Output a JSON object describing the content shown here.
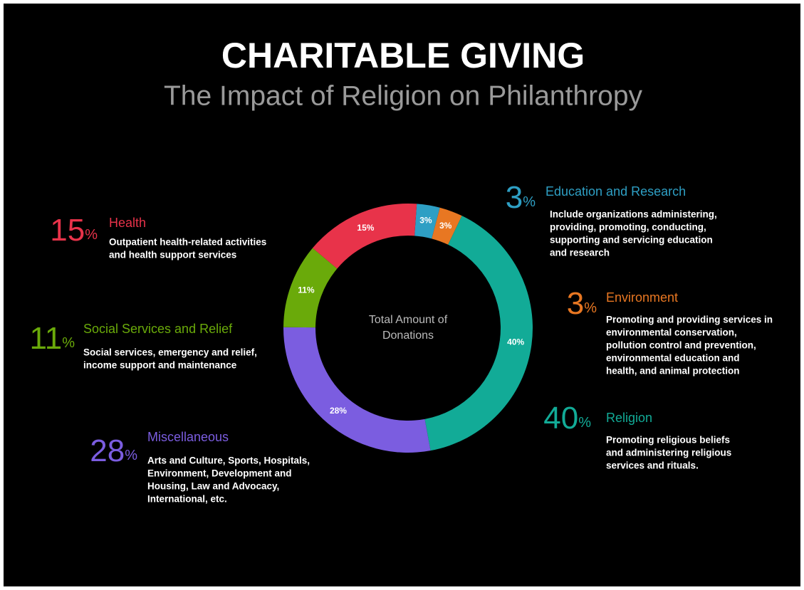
{
  "chart_data": {
    "type": "pie",
    "title": "CHARITABLE GIVING",
    "subtitle": "The Impact of Religion on Philanthropy",
    "center_label": [
      "Total Amount of",
      "Donations"
    ],
    "unit": "%",
    "categories": [
      "Education and Research",
      "Environment",
      "Religion",
      "Miscellaneous",
      "Social Services and Relief",
      "Health"
    ],
    "values": [
      3,
      3,
      40,
      28,
      11,
      15
    ],
    "value_labels": [
      "3%",
      "3%",
      "40%",
      "28%",
      "11%",
      "15%"
    ],
    "colors": [
      "#2e9fc4",
      "#e87722",
      "#12ab97",
      "#7b5de0",
      "#6aaa0a",
      "#e8334a"
    ],
    "descriptions": [
      [
        "Include organizations administering,",
        "providing, promoting, conducting,",
        "supporting and servicing education",
        "and research"
      ],
      [
        "Promoting and providing services in",
        "environmental conservation,",
        "pollution control and prevention,",
        "environmental education and",
        "health, and animal protection"
      ],
      [
        "Promoting religious beliefs",
        "and administering religious",
        "services and rituals."
      ],
      [
        "Arts and Culture, Sports, Hospitals,",
        "Environment, Development and",
        "Housing, Law and Advocacy,",
        "International, etc."
      ],
      [
        "Social services, emergency and relief,",
        "income support and maintenance"
      ],
      [
        "Outpatient health-related activities",
        "and health support services"
      ]
    ]
  }
}
